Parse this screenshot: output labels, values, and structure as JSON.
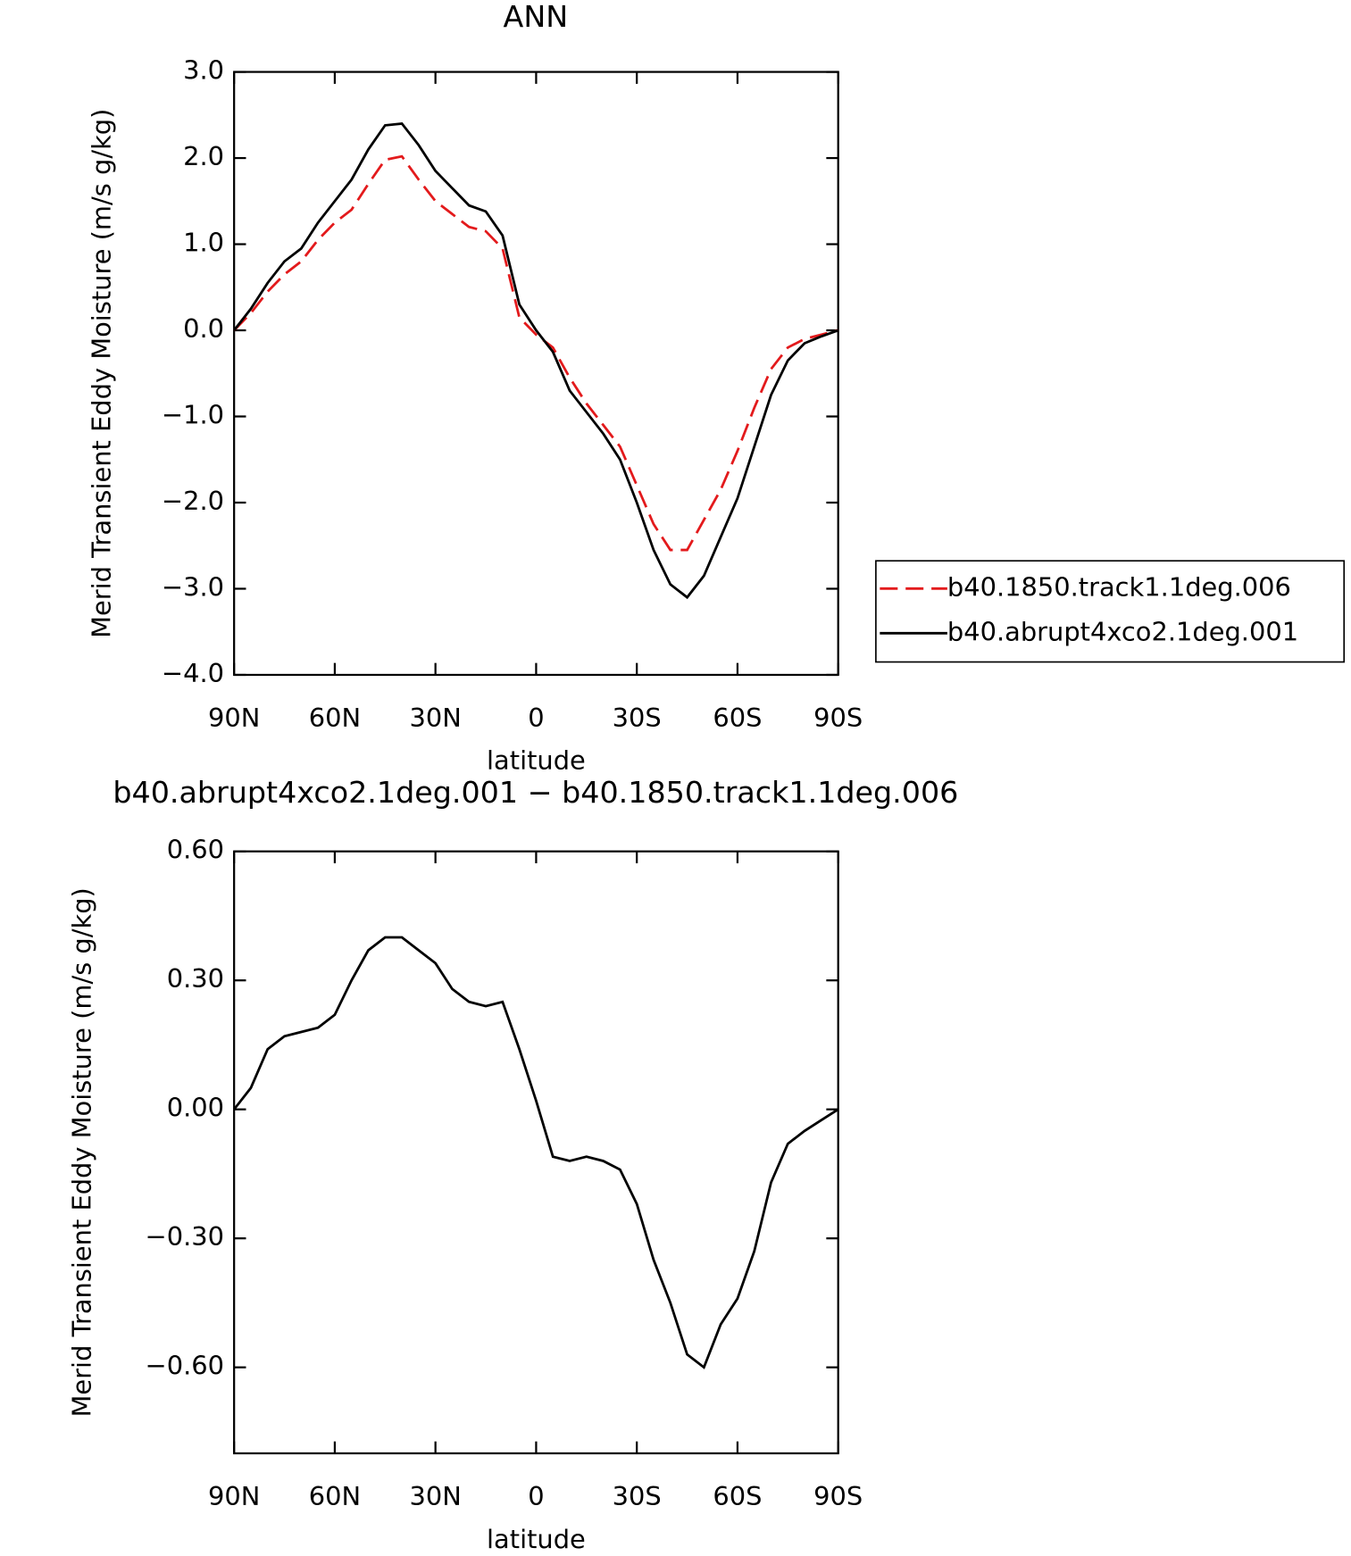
{
  "chart_data": [
    {
      "type": "line",
      "title": "ANN",
      "xlabel": "latitude",
      "ylabel": "Merid Transient Eddy Moisture (m/s g/kg)",
      "x": [
        90,
        85,
        80,
        75,
        70,
        65,
        60,
        55,
        50,
        45,
        40,
        35,
        30,
        25,
        20,
        15,
        10,
        5,
        0,
        -5,
        -10,
        -15,
        -20,
        -25,
        -30,
        -35,
        -40,
        -45,
        -50,
        -55,
        -60,
        -65,
        -70,
        -75,
        -80,
        -85,
        -90
      ],
      "series": [
        {
          "name": "b40.1850.track1.1deg.006",
          "color": "#e31a1c",
          "dash": true,
          "values": [
            0,
            0.2,
            0.45,
            0.65,
            0.8,
            1.05,
            1.25,
            1.4,
            1.7,
            1.98,
            2.02,
            1.75,
            1.5,
            1.35,
            1.2,
            1.15,
            0.95,
            0.15,
            -0.05,
            -0.2,
            -0.55,
            -0.85,
            -1.1,
            -1.35,
            -1.8,
            -2.25,
            -2.55,
            -2.55,
            -2.2,
            -1.85,
            -1.4,
            -0.9,
            -0.45,
            -0.2,
            -0.1,
            -0.05,
            0
          ]
        },
        {
          "name": "b40.abrupt4xco2.1deg.001",
          "color": "#000000",
          "dash": false,
          "values": [
            0,
            0.25,
            0.55,
            0.8,
            0.95,
            1.25,
            1.5,
            1.75,
            2.1,
            2.38,
            2.4,
            2.15,
            1.85,
            1.65,
            1.45,
            1.38,
            1.1,
            0.3,
            0,
            -0.25,
            -0.7,
            -0.95,
            -1.2,
            -1.5,
            -2.0,
            -2.55,
            -2.95,
            -3.1,
            -2.85,
            -2.4,
            -1.95,
            -1.35,
            -0.75,
            -0.35,
            -0.15,
            -0.07,
            0
          ]
        }
      ],
      "xlim": [
        90,
        -90
      ],
      "xticks": [
        {
          "value": 90,
          "label": "90N"
        },
        {
          "value": 60,
          "label": "60N"
        },
        {
          "value": 30,
          "label": "30N"
        },
        0,
        {
          "value": -30,
          "label": "30S"
        },
        {
          "value": -60,
          "label": "60S"
        },
        {
          "value": -90,
          "label": "90S"
        }
      ],
      "ylim": [
        -4,
        3
      ],
      "yticks": [
        {
          "value": -4,
          "label": "−4.0"
        },
        {
          "value": -3,
          "label": "−3.0"
        },
        {
          "value": -2,
          "label": "−2.0"
        },
        {
          "value": -1,
          "label": "−1.0"
        },
        {
          "value": 0,
          "label": "0.0"
        },
        {
          "value": 1,
          "label": "1.0"
        },
        {
          "value": 2,
          "label": "2.0"
        },
        {
          "value": 3,
          "label": "3.0"
        }
      ],
      "legend": "outside-right"
    },
    {
      "type": "line",
      "title": "b40.abrupt4xco2.1deg.001 − b40.1850.track1.1deg.006",
      "xlabel": "latitude",
      "ylabel": "Merid Transient Eddy Moisture (m/s g/kg)",
      "x": [
        90,
        85,
        80,
        75,
        70,
        65,
        60,
        55,
        50,
        45,
        40,
        35,
        30,
        25,
        20,
        15,
        10,
        5,
        0,
        -5,
        -10,
        -15,
        -20,
        -25,
        -30,
        -35,
        -40,
        -45,
        -50,
        -55,
        -60,
        -65,
        -70,
        -75,
        -80,
        -85,
        -90
      ],
      "series": [
        {
          "color": "#000000",
          "dash": false,
          "values": [
            0,
            0.05,
            0.14,
            0.17,
            0.18,
            0.19,
            0.22,
            0.3,
            0.37,
            0.4,
            0.4,
            0.37,
            0.34,
            0.28,
            0.25,
            0.24,
            0.25,
            0.14,
            0.02,
            -0.11,
            -0.12,
            -0.11,
            -0.12,
            -0.14,
            -0.22,
            -0.35,
            -0.45,
            -0.57,
            -0.6,
            -0.5,
            -0.44,
            -0.33,
            -0.17,
            -0.08,
            -0.05,
            -0.025,
            0
          ]
        }
      ],
      "xlim": [
        90,
        -90
      ],
      "xticks": [
        {
          "value": 90,
          "label": "90N"
        },
        {
          "value": 60,
          "label": "60N"
        },
        {
          "value": 30,
          "label": "30N"
        },
        0,
        {
          "value": -30,
          "label": "30S"
        },
        {
          "value": -60,
          "label": "60S"
        },
        {
          "value": -90,
          "label": "90S"
        }
      ],
      "ylim": [
        -0.8,
        0.6
      ],
      "yticks": [
        {
          "value": -0.6,
          "label": "−0.60"
        },
        {
          "value": -0.3,
          "label": "−0.30"
        },
        {
          "value": 0,
          "label": "0.00"
        },
        {
          "value": 0.3,
          "label": "0.30"
        },
        {
          "value": 0.6,
          "label": "0.60"
        }
      ]
    }
  ]
}
